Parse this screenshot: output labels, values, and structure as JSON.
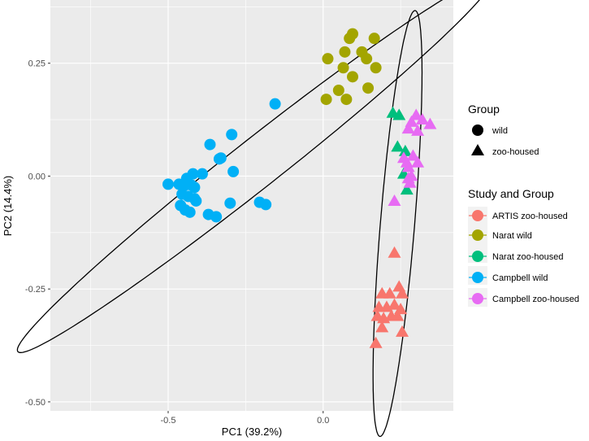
{
  "chart_data": {
    "type": "scatter",
    "xlabel": "PC1 (39.2%)",
    "ylabel": "PC2 (14.4%)",
    "xlim": [
      -0.88,
      0.42
    ],
    "ylim": [
      -0.52,
      0.39
    ],
    "x_ticks": [
      {
        "value": -0.5,
        "label": "-0.5"
      },
      {
        "value": 0.0,
        "label": "0.0"
      }
    ],
    "y_ticks": [
      {
        "value": 0.25,
        "label": "0.25"
      },
      {
        "value": 0.0,
        "label": "0.00"
      },
      {
        "value": -0.25,
        "label": "-0.25"
      },
      {
        "value": -0.5,
        "label": "-0.50"
      }
    ],
    "grid": true,
    "legend_position": "right",
    "legends": [
      {
        "title": "Group",
        "entries": [
          {
            "label": "wild",
            "shape": "circle",
            "color": "#000000"
          },
          {
            "label": "zoo-housed",
            "shape": "triangle",
            "color": "#000000"
          }
        ]
      },
      {
        "title": "Study and Group",
        "entries": [
          {
            "label": "ARTIS zoo-housed",
            "shape": "circle",
            "color": "#F8766D"
          },
          {
            "label": "Narat wild",
            "shape": "circle",
            "color": "#A3A500"
          },
          {
            "label": "Narat zoo-housed",
            "shape": "circle",
            "color": "#00BF7D"
          },
          {
            "label": "Campbell wild",
            "shape": "circle",
            "color": "#00B0F6"
          },
          {
            "label": "Campbell zoo-housed",
            "shape": "circle",
            "color": "#E76BF3"
          }
        ]
      }
    ],
    "series": [
      {
        "name": "ARTIS zoo-housed",
        "group": "zoo-housed",
        "shape": "triangle",
        "color": "#F8766D",
        "points": [
          [
            0.23,
            -0.17
          ],
          [
            0.19,
            -0.26
          ],
          [
            0.215,
            -0.26
          ],
          [
            0.245,
            -0.245
          ],
          [
            0.255,
            -0.26
          ],
          [
            0.18,
            -0.29
          ],
          [
            0.205,
            -0.29
          ],
          [
            0.23,
            -0.285
          ],
          [
            0.25,
            -0.295
          ],
          [
            0.175,
            -0.31
          ],
          [
            0.195,
            -0.315
          ],
          [
            0.22,
            -0.31
          ],
          [
            0.24,
            -0.31
          ],
          [
            0.255,
            -0.345
          ],
          [
            0.19,
            -0.335
          ],
          [
            0.17,
            -0.37
          ]
        ]
      },
      {
        "name": "Narat wild",
        "group": "wild",
        "shape": "circle",
        "color": "#A3A500",
        "points": [
          [
            0.095,
            0.315
          ],
          [
            0.085,
            0.305
          ],
          [
            0.165,
            0.305
          ],
          [
            0.07,
            0.275
          ],
          [
            0.125,
            0.275
          ],
          [
            0.015,
            0.26
          ],
          [
            0.14,
            0.26
          ],
          [
            0.065,
            0.24
          ],
          [
            0.17,
            0.24
          ],
          [
            0.095,
            0.22
          ],
          [
            0.05,
            0.19
          ],
          [
            0.145,
            0.195
          ],
          [
            0.01,
            0.17
          ],
          [
            0.075,
            0.17
          ]
        ]
      },
      {
        "name": "Narat zoo-housed",
        "group": "zoo-housed",
        "shape": "triangle",
        "color": "#00BF7D",
        "points": [
          [
            0.225,
            0.14
          ],
          [
            0.245,
            0.135
          ],
          [
            0.24,
            0.065
          ],
          [
            0.265,
            0.055
          ],
          [
            0.26,
            0.005
          ],
          [
            0.27,
            -0.03
          ]
        ]
      },
      {
        "name": "Campbell wild",
        "group": "wild",
        "shape": "circle",
        "color": "#00B0F6",
        "points": [
          [
            -0.155,
            0.16
          ],
          [
            -0.365,
            0.07
          ],
          [
            -0.295,
            0.092
          ],
          [
            -0.33,
            0.04
          ],
          [
            -0.335,
            0.038
          ],
          [
            -0.29,
            0.01
          ],
          [
            -0.42,
            0.005
          ],
          [
            -0.39,
            0.005
          ],
          [
            -0.44,
            -0.005
          ],
          [
            -0.5,
            -0.018
          ],
          [
            -0.465,
            -0.018
          ],
          [
            -0.445,
            -0.02
          ],
          [
            -0.425,
            -0.02
          ],
          [
            -0.415,
            -0.025
          ],
          [
            -0.455,
            -0.04
          ],
          [
            -0.435,
            -0.045
          ],
          [
            -0.415,
            -0.05
          ],
          [
            -0.41,
            -0.055
          ],
          [
            -0.46,
            -0.065
          ],
          [
            -0.445,
            -0.075
          ],
          [
            -0.43,
            -0.08
          ],
          [
            -0.37,
            -0.085
          ],
          [
            -0.345,
            -0.09
          ],
          [
            -0.3,
            -0.06
          ],
          [
            -0.205,
            -0.058
          ],
          [
            -0.185,
            -0.063
          ]
        ]
      },
      {
        "name": "Campbell zoo-housed",
        "group": "zoo-housed",
        "shape": "triangle",
        "color": "#E76BF3",
        "points": [
          [
            0.3,
            0.135
          ],
          [
            0.285,
            0.12
          ],
          [
            0.32,
            0.125
          ],
          [
            0.345,
            0.115
          ],
          [
            0.275,
            0.105
          ],
          [
            0.305,
            0.1
          ],
          [
            0.26,
            0.04
          ],
          [
            0.29,
            0.045
          ],
          [
            0.27,
            0.03
          ],
          [
            0.305,
            0.03
          ],
          [
            0.275,
            0.02
          ],
          [
            0.285,
            0.0
          ],
          [
            0.275,
            -0.005
          ],
          [
            0.28,
            -0.015
          ],
          [
            0.23,
            -0.055
          ]
        ]
      }
    ],
    "ellipses": [
      {
        "name": "wild",
        "center": [
          -0.22,
          0.025
        ],
        "semi_major": 0.87,
        "semi_minor": 0.06,
        "angle_deg": 28.3
      },
      {
        "name": "zoo-housed",
        "center": [
          0.24,
          -0.105
        ],
        "semi_major": 0.475,
        "semi_minor": 0.055,
        "angle_deg": 83.1
      }
    ]
  }
}
